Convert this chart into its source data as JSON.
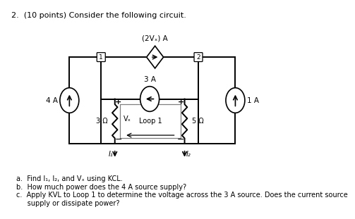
{
  "title": "2.  (10 points) Consider the following circuit.",
  "bg_color": "#ffffff",
  "text_color": "#000000",
  "qa": "a.  Find I₁, I₂, and Vₓ using KCL.",
  "qb": "b.  How much power does the 4 A source supply?",
  "qc": "c.  Apply KVL to Loop 1 to determine the voltage across the 3 A source. Does the current source",
  "qd": "     supply or dissipate power?",
  "dep_label": "(2Vₓ) A",
  "src3_label": "3 A",
  "src4_label": "4 A",
  "src1_label": "1 A",
  "res3_label": "3 Ω",
  "res5_label": "5 Ω",
  "vx_label": "Vₓ",
  "loop_label": "Loop 1",
  "node1_label": "1",
  "node2_label": "2",
  "i1_label": "I₁",
  "i2_label": "I₂"
}
